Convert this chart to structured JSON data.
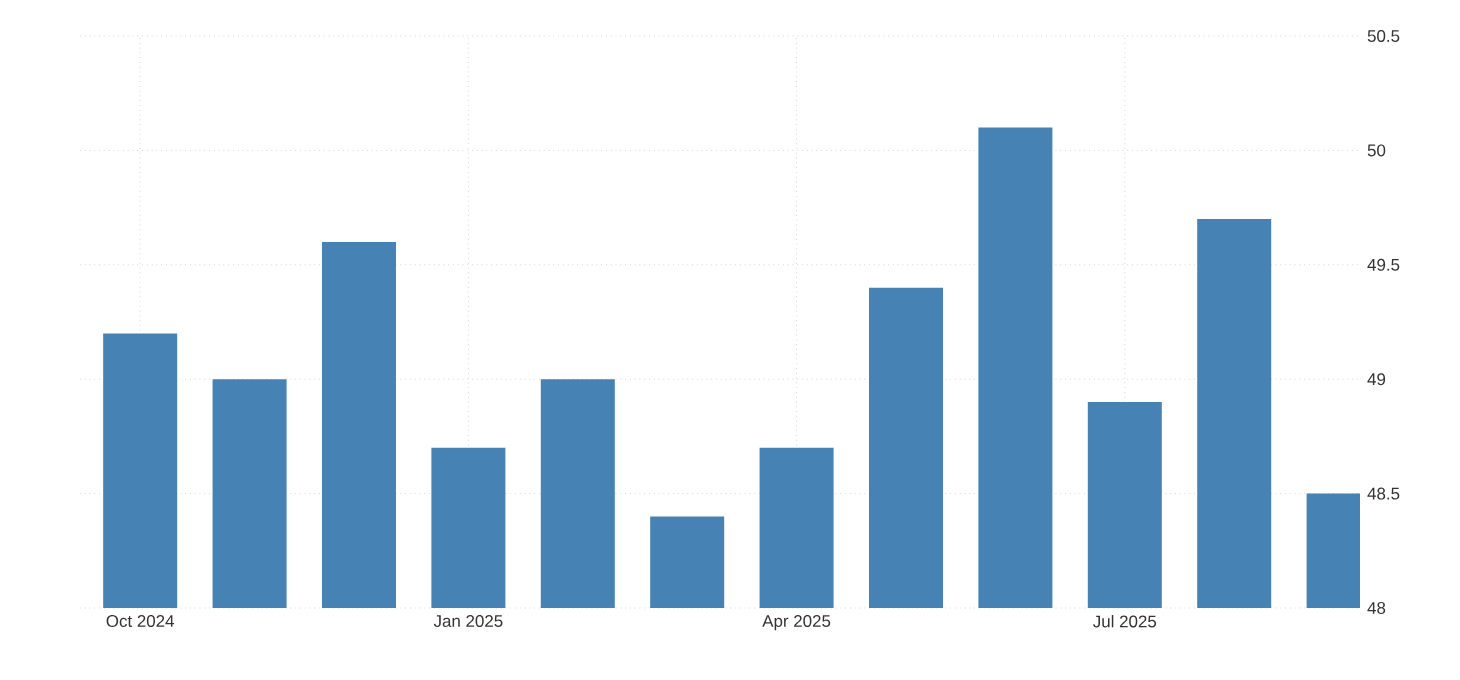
{
  "chart_data": {
    "type": "bar",
    "categories": [
      "Oct 2024",
      null,
      null,
      "Jan 2025",
      null,
      null,
      "Apr 2025",
      null,
      null,
      "Jul 2025",
      null,
      null
    ],
    "values": [
      49.2,
      49.0,
      49.6,
      48.7,
      49.0,
      48.4,
      48.7,
      49.4,
      50.1,
      48.9,
      49.7,
      48.5
    ],
    "color": "#4682b4",
    "ylim": [
      48,
      50.5
    ],
    "yticks": [
      48,
      48.5,
      49,
      49.5,
      50,
      50.5
    ],
    "grid": true
  }
}
